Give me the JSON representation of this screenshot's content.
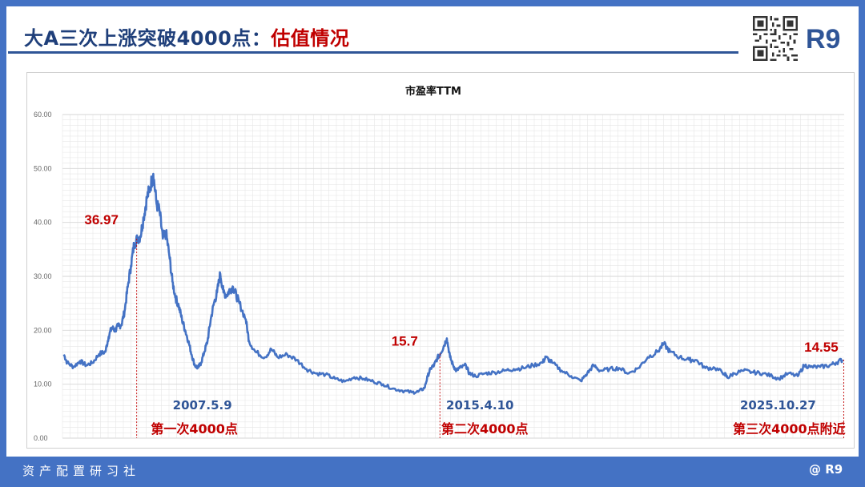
{
  "header": {
    "title_main": "大A三次上涨突破4000点：",
    "title_accent": "估值情况",
    "brand": "R9"
  },
  "footer": {
    "left": "资产配置研习社",
    "right": "@ R9"
  },
  "colors": {
    "frame": "#4472c4",
    "title": "#1f3f7a",
    "accent": "#c00000",
    "series": "#4472c4",
    "date_label": "#2f5597",
    "grid": "#e6e6e6"
  },
  "chart_data": {
    "type": "line",
    "title": "市盈率TTM",
    "xlabel": "",
    "ylabel": "",
    "ylim": [
      0,
      60
    ],
    "yticks": [
      "0.00",
      "10.00",
      "20.00",
      "30.00",
      "40.00",
      "50.00",
      "60.00"
    ],
    "grid": true,
    "xlim": [
      "2005-06",
      "2025-11"
    ],
    "series": [
      {
        "name": "",
        "points": [
          [
            "2005-06",
            15.5
          ],
          [
            "2005-07",
            14.0
          ],
          [
            "2005-09",
            13.2
          ],
          [
            "2005-11",
            14.3
          ],
          [
            "2006-01",
            13.5
          ],
          [
            "2006-03",
            14.0
          ],
          [
            "2006-05",
            15.6
          ],
          [
            "2006-07",
            16.0
          ],
          [
            "2006-08",
            18.8
          ],
          [
            "2006-09",
            20.5
          ],
          [
            "2006-10",
            20.0
          ],
          [
            "2006-11",
            20.8
          ],
          [
            "2006-12",
            21.0
          ],
          [
            "2007-01",
            23.5
          ],
          [
            "2007-02",
            28.0
          ],
          [
            "2007-03",
            32.0
          ],
          [
            "2007-04",
            36.0
          ],
          [
            "2007-05",
            36.97
          ],
          [
            "2007-06",
            37.5
          ],
          [
            "2007-07",
            41.0
          ],
          [
            "2007-08",
            44.5
          ],
          [
            "2007-09",
            46.5
          ],
          [
            "2007-10",
            49.0
          ],
          [
            "2007-11",
            43.5
          ],
          [
            "2007-12",
            42.0
          ],
          [
            "2008-01",
            37.0
          ],
          [
            "2008-02",
            38.0
          ],
          [
            "2008-03",
            34.0
          ],
          [
            "2008-04",
            29.0
          ],
          [
            "2008-05",
            26.0
          ],
          [
            "2008-06",
            24.5
          ],
          [
            "2008-07",
            22.0
          ],
          [
            "2008-08",
            20.0
          ],
          [
            "2008-09",
            18.0
          ],
          [
            "2008-10",
            15.5
          ],
          [
            "2008-11",
            13.5
          ],
          [
            "2008-12",
            13.0
          ],
          [
            "2009-01",
            14.0
          ],
          [
            "2009-02",
            16.0
          ],
          [
            "2009-03",
            18.0
          ],
          [
            "2009-04",
            22.0
          ],
          [
            "2009-05",
            25.0
          ],
          [
            "2009-06",
            27.0
          ],
          [
            "2009-07",
            30.5
          ],
          [
            "2009-08",
            27.0
          ],
          [
            "2009-09",
            26.5
          ],
          [
            "2009-10",
            27.5
          ],
          [
            "2009-11",
            28.0
          ],
          [
            "2009-12",
            26.5
          ],
          [
            "2010-01",
            25.0
          ],
          [
            "2010-03",
            22.0
          ],
          [
            "2010-04",
            18.0
          ],
          [
            "2010-06",
            16.0
          ],
          [
            "2010-09",
            15.0
          ],
          [
            "2010-11",
            16.5
          ],
          [
            "2011-01",
            15.0
          ],
          [
            "2011-04",
            15.5
          ],
          [
            "2011-07",
            14.5
          ],
          [
            "2011-10",
            12.8
          ],
          [
            "2012-01",
            12.0
          ],
          [
            "2012-04",
            11.8
          ],
          [
            "2012-07",
            11.0
          ],
          [
            "2012-10",
            10.5
          ],
          [
            "2013-01",
            11.3
          ],
          [
            "2013-04",
            11.0
          ],
          [
            "2013-07",
            10.5
          ],
          [
            "2013-10",
            10.0
          ],
          [
            "2014-01",
            9.2
          ],
          [
            "2014-04",
            8.8
          ],
          [
            "2014-07",
            8.5
          ],
          [
            "2014-09",
            8.6
          ],
          [
            "2014-11",
            9.3
          ],
          [
            "2014-12",
            11.5
          ],
          [
            "2015-01",
            13.0
          ],
          [
            "2015-02",
            13.5
          ],
          [
            "2015-03",
            14.8
          ],
          [
            "2015-04",
            15.7
          ],
          [
            "2015-05",
            17.0
          ],
          [
            "2015-06",
            18.5
          ],
          [
            "2015-07",
            15.0
          ],
          [
            "2015-08",
            13.5
          ],
          [
            "2015-09",
            12.5
          ],
          [
            "2015-10",
            13.0
          ],
          [
            "2015-12",
            13.5
          ],
          [
            "2016-01",
            12.0
          ],
          [
            "2016-03",
            11.5
          ],
          [
            "2016-06",
            12.0
          ],
          [
            "2016-09",
            12.2
          ],
          [
            "2016-12",
            12.5
          ],
          [
            "2017-03",
            12.8
          ],
          [
            "2017-06",
            13.0
          ],
          [
            "2017-09",
            13.5
          ],
          [
            "2017-12",
            14.0
          ],
          [
            "2018-01",
            15.0
          ],
          [
            "2018-03",
            14.0
          ],
          [
            "2018-06",
            12.5
          ],
          [
            "2018-09",
            11.5
          ],
          [
            "2018-12",
            10.6
          ],
          [
            "2019-02",
            12.0
          ],
          [
            "2019-04",
            13.5
          ],
          [
            "2019-06",
            12.5
          ],
          [
            "2019-09",
            12.8
          ],
          [
            "2019-12",
            13.0
          ],
          [
            "2020-03",
            12.0
          ],
          [
            "2020-06",
            13.0
          ],
          [
            "2020-09",
            15.0
          ],
          [
            "2020-12",
            16.0
          ],
          [
            "2021-02",
            17.5
          ],
          [
            "2021-04",
            16.0
          ],
          [
            "2021-07",
            15.0
          ],
          [
            "2021-10",
            14.5
          ],
          [
            "2021-12",
            14.5
          ],
          [
            "2022-03",
            13.0
          ],
          [
            "2022-06",
            13.0
          ],
          [
            "2022-09",
            12.0
          ],
          [
            "2022-10",
            11.2
          ],
          [
            "2022-12",
            12.0
          ],
          [
            "2023-03",
            12.5
          ],
          [
            "2023-06",
            12.2
          ],
          [
            "2023-09",
            12.0
          ],
          [
            "2023-12",
            11.5
          ],
          [
            "2024-02",
            11.0
          ],
          [
            "2024-05",
            12.0
          ],
          [
            "2024-08",
            11.5
          ],
          [
            "2024-10",
            13.5
          ],
          [
            "2024-12",
            13.2
          ],
          [
            "2025-03",
            13.2
          ],
          [
            "2025-06",
            13.5
          ],
          [
            "2025-08",
            14.0
          ],
          [
            "2025-10",
            14.55
          ]
        ]
      }
    ],
    "annotations": [
      {
        "date": "2007-05-09",
        "value": 36.97,
        "value_label": "36.97",
        "date_label": "2007.5.9",
        "caption": "第一次4000点"
      },
      {
        "date": "2015-04-10",
        "value": 15.7,
        "value_label": "15.7",
        "date_label": "2015.4.10",
        "caption": "第二次4000点"
      },
      {
        "date": "2025-10-27",
        "value": 14.55,
        "value_label": "14.55",
        "date_label": "2025.10.27",
        "caption": "第三次4000点附近"
      }
    ]
  }
}
